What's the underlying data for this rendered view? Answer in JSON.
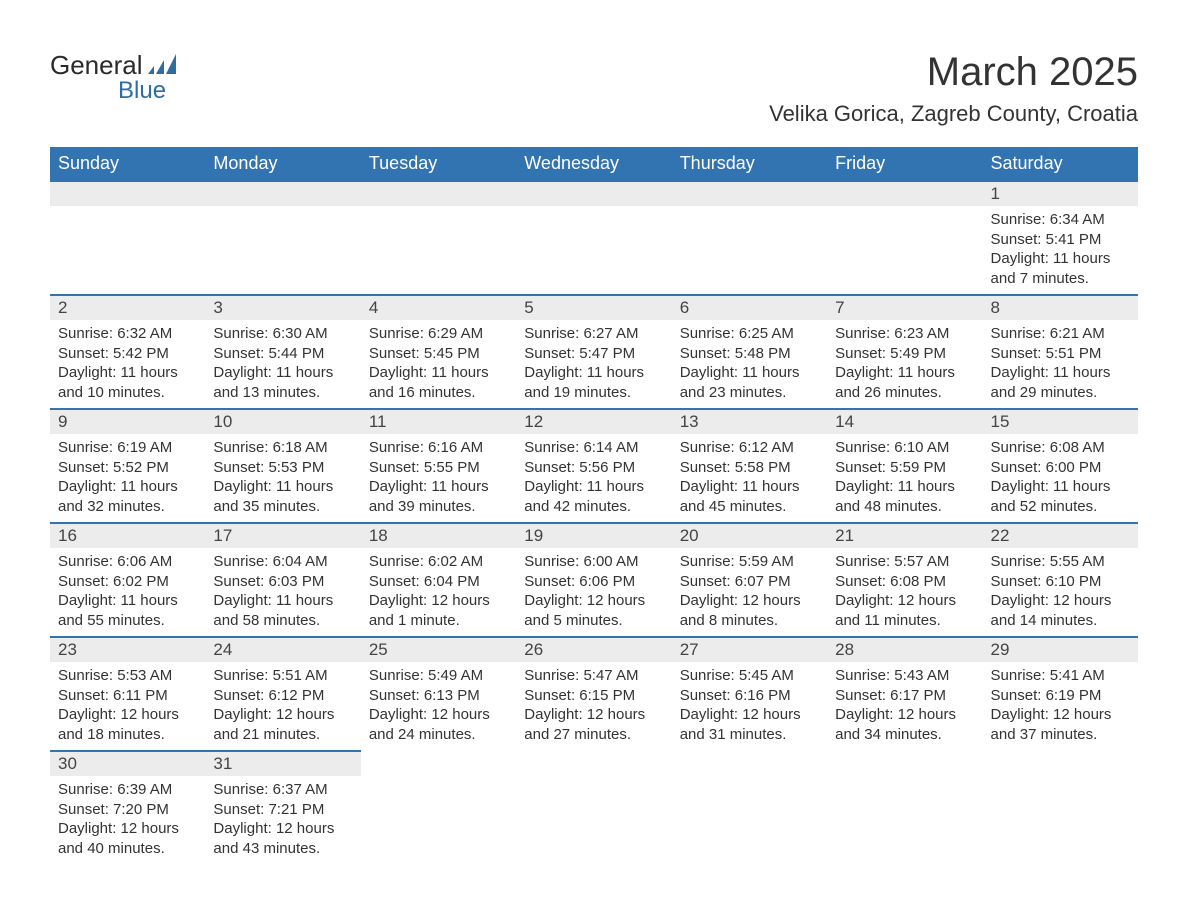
{
  "logo": {
    "word1": "General",
    "word2": "Blue",
    "icon_color": "#2e6da4"
  },
  "title": "March 2025",
  "location": "Velika Gorica, Zagreb County, Croatia",
  "colors": {
    "header_bg": "#3273b1",
    "header_text": "#ffffff",
    "daynum_bg": "#ececec",
    "border": "#3273b1",
    "text": "#333333"
  },
  "typography": {
    "title_fontsize": 40,
    "location_fontsize": 22,
    "header_fontsize": 18,
    "daynum_fontsize": 17,
    "body_fontsize": 15
  },
  "weekdays": [
    "Sunday",
    "Monday",
    "Tuesday",
    "Wednesday",
    "Thursday",
    "Friday",
    "Saturday"
  ],
  "weeks": [
    [
      null,
      null,
      null,
      null,
      null,
      null,
      {
        "n": "1",
        "sr": "Sunrise: 6:34 AM",
        "ss": "Sunset: 5:41 PM",
        "dl": "Daylight: 11 hours and 7 minutes."
      }
    ],
    [
      {
        "n": "2",
        "sr": "Sunrise: 6:32 AM",
        "ss": "Sunset: 5:42 PM",
        "dl": "Daylight: 11 hours and 10 minutes."
      },
      {
        "n": "3",
        "sr": "Sunrise: 6:30 AM",
        "ss": "Sunset: 5:44 PM",
        "dl": "Daylight: 11 hours and 13 minutes."
      },
      {
        "n": "4",
        "sr": "Sunrise: 6:29 AM",
        "ss": "Sunset: 5:45 PM",
        "dl": "Daylight: 11 hours and 16 minutes."
      },
      {
        "n": "5",
        "sr": "Sunrise: 6:27 AM",
        "ss": "Sunset: 5:47 PM",
        "dl": "Daylight: 11 hours and 19 minutes."
      },
      {
        "n": "6",
        "sr": "Sunrise: 6:25 AM",
        "ss": "Sunset: 5:48 PM",
        "dl": "Daylight: 11 hours and 23 minutes."
      },
      {
        "n": "7",
        "sr": "Sunrise: 6:23 AM",
        "ss": "Sunset: 5:49 PM",
        "dl": "Daylight: 11 hours and 26 minutes."
      },
      {
        "n": "8",
        "sr": "Sunrise: 6:21 AM",
        "ss": "Sunset: 5:51 PM",
        "dl": "Daylight: 11 hours and 29 minutes."
      }
    ],
    [
      {
        "n": "9",
        "sr": "Sunrise: 6:19 AM",
        "ss": "Sunset: 5:52 PM",
        "dl": "Daylight: 11 hours and 32 minutes."
      },
      {
        "n": "10",
        "sr": "Sunrise: 6:18 AM",
        "ss": "Sunset: 5:53 PM",
        "dl": "Daylight: 11 hours and 35 minutes."
      },
      {
        "n": "11",
        "sr": "Sunrise: 6:16 AM",
        "ss": "Sunset: 5:55 PM",
        "dl": "Daylight: 11 hours and 39 minutes."
      },
      {
        "n": "12",
        "sr": "Sunrise: 6:14 AM",
        "ss": "Sunset: 5:56 PM",
        "dl": "Daylight: 11 hours and 42 minutes."
      },
      {
        "n": "13",
        "sr": "Sunrise: 6:12 AM",
        "ss": "Sunset: 5:58 PM",
        "dl": "Daylight: 11 hours and 45 minutes."
      },
      {
        "n": "14",
        "sr": "Sunrise: 6:10 AM",
        "ss": "Sunset: 5:59 PM",
        "dl": "Daylight: 11 hours and 48 minutes."
      },
      {
        "n": "15",
        "sr": "Sunrise: 6:08 AM",
        "ss": "Sunset: 6:00 PM",
        "dl": "Daylight: 11 hours and 52 minutes."
      }
    ],
    [
      {
        "n": "16",
        "sr": "Sunrise: 6:06 AM",
        "ss": "Sunset: 6:02 PM",
        "dl": "Daylight: 11 hours and 55 minutes."
      },
      {
        "n": "17",
        "sr": "Sunrise: 6:04 AM",
        "ss": "Sunset: 6:03 PM",
        "dl": "Daylight: 11 hours and 58 minutes."
      },
      {
        "n": "18",
        "sr": "Sunrise: 6:02 AM",
        "ss": "Sunset: 6:04 PM",
        "dl": "Daylight: 12 hours and 1 minute."
      },
      {
        "n": "19",
        "sr": "Sunrise: 6:00 AM",
        "ss": "Sunset: 6:06 PM",
        "dl": "Daylight: 12 hours and 5 minutes."
      },
      {
        "n": "20",
        "sr": "Sunrise: 5:59 AM",
        "ss": "Sunset: 6:07 PM",
        "dl": "Daylight: 12 hours and 8 minutes."
      },
      {
        "n": "21",
        "sr": "Sunrise: 5:57 AM",
        "ss": "Sunset: 6:08 PM",
        "dl": "Daylight: 12 hours and 11 minutes."
      },
      {
        "n": "22",
        "sr": "Sunrise: 5:55 AM",
        "ss": "Sunset: 6:10 PM",
        "dl": "Daylight: 12 hours and 14 minutes."
      }
    ],
    [
      {
        "n": "23",
        "sr": "Sunrise: 5:53 AM",
        "ss": "Sunset: 6:11 PM",
        "dl": "Daylight: 12 hours and 18 minutes."
      },
      {
        "n": "24",
        "sr": "Sunrise: 5:51 AM",
        "ss": "Sunset: 6:12 PM",
        "dl": "Daylight: 12 hours and 21 minutes."
      },
      {
        "n": "25",
        "sr": "Sunrise: 5:49 AM",
        "ss": "Sunset: 6:13 PM",
        "dl": "Daylight: 12 hours and 24 minutes."
      },
      {
        "n": "26",
        "sr": "Sunrise: 5:47 AM",
        "ss": "Sunset: 6:15 PM",
        "dl": "Daylight: 12 hours and 27 minutes."
      },
      {
        "n": "27",
        "sr": "Sunrise: 5:45 AM",
        "ss": "Sunset: 6:16 PM",
        "dl": "Daylight: 12 hours and 31 minutes."
      },
      {
        "n": "28",
        "sr": "Sunrise: 5:43 AM",
        "ss": "Sunset: 6:17 PM",
        "dl": "Daylight: 12 hours and 34 minutes."
      },
      {
        "n": "29",
        "sr": "Sunrise: 5:41 AM",
        "ss": "Sunset: 6:19 PM",
        "dl": "Daylight: 12 hours and 37 minutes."
      }
    ],
    [
      {
        "n": "30",
        "sr": "Sunrise: 6:39 AM",
        "ss": "Sunset: 7:20 PM",
        "dl": "Daylight: 12 hours and 40 minutes."
      },
      {
        "n": "31",
        "sr": "Sunrise: 6:37 AM",
        "ss": "Sunset: 7:21 PM",
        "dl": "Daylight: 12 hours and 43 minutes."
      },
      null,
      null,
      null,
      null,
      null
    ]
  ]
}
